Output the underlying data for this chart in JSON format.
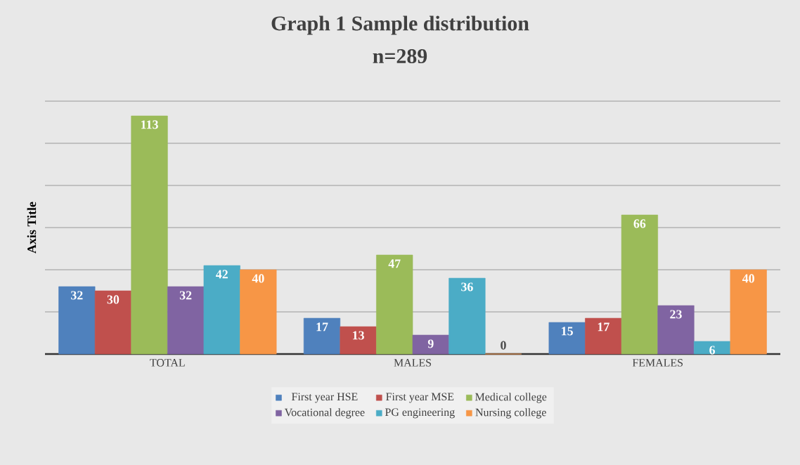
{
  "chart_data": {
    "type": "bar",
    "title": "Graph 1 Sample distribution",
    "subtitle": "n=289",
    "ylabel": "Axis Title",
    "categories": [
      "TOTAL",
      "MALES",
      "FEMALES"
    ],
    "series": [
      {
        "name": "First year HSE",
        "color": "#4f81bd",
        "values": [
          32,
          17,
          15
        ]
      },
      {
        "name": "First year MSE",
        "color": "#c0504d",
        "values": [
          30,
          13,
          17
        ]
      },
      {
        "name": "Medical college",
        "color": "#9bbb59",
        "values": [
          113,
          47,
          66
        ]
      },
      {
        "name": "Vocational degree",
        "color": "#8064a2",
        "values": [
          32,
          9,
          23
        ]
      },
      {
        "name": "PG engineering",
        "color": "#4bacc6",
        "values": [
          42,
          36,
          6
        ]
      },
      {
        "name": "Nursing college",
        "color": "#f79646",
        "values": [
          40,
          0,
          40
        ]
      }
    ],
    "ylim": [
      0,
      120
    ],
    "yticks": [
      {
        "value": 0,
        "label": null
      },
      {
        "value": 20,
        "label": null
      },
      {
        "value": 40,
        "label": null
      },
      {
        "value": 60,
        "label": null
      },
      {
        "value": 80,
        "label": null
      },
      {
        "value": 100,
        "label": null
      },
      {
        "value": 120,
        "label": null
      }
    ],
    "tick_labels": "x",
    "grid": "y",
    "legend": "bottom",
    "data_labels": true
  }
}
